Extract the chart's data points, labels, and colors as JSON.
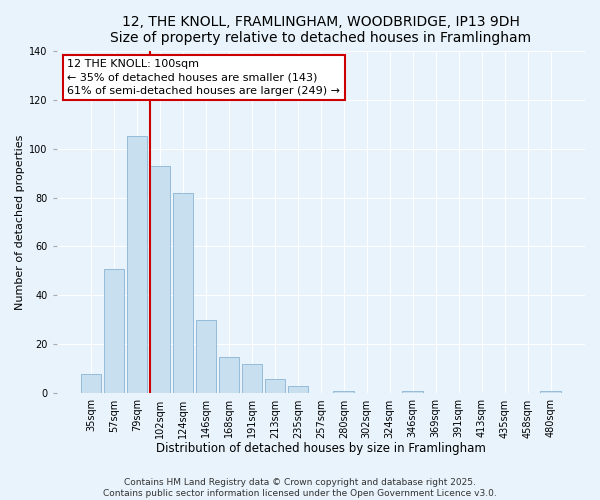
{
  "title": "12, THE KNOLL, FRAMLINGHAM, WOODBRIDGE, IP13 9DH",
  "subtitle": "Size of property relative to detached houses in Framlingham",
  "xlabel": "Distribution of detached houses by size in Framlingham",
  "ylabel": "Number of detached properties",
  "bar_labels": [
    "35sqm",
    "57sqm",
    "79sqm",
    "102sqm",
    "124sqm",
    "146sqm",
    "168sqm",
    "191sqm",
    "213sqm",
    "235sqm",
    "257sqm",
    "280sqm",
    "302sqm",
    "324sqm",
    "346sqm",
    "369sqm",
    "391sqm",
    "413sqm",
    "435sqm",
    "458sqm",
    "480sqm"
  ],
  "bar_values": [
    8,
    51,
    105,
    93,
    82,
    30,
    15,
    12,
    6,
    3,
    0,
    1,
    0,
    0,
    1,
    0,
    0,
    0,
    0,
    0,
    1
  ],
  "bar_color": "#c8dff0",
  "bar_edge_color": "#8ab4d4",
  "vline_index": 3,
  "vline_color": "#cc0000",
  "annotation_title": "12 THE KNOLL: 100sqm",
  "annotation_line1": "← 35% of detached houses are smaller (143)",
  "annotation_line2": "61% of semi-detached houses are larger (249) →",
  "annotation_box_facecolor": "#ffffff",
  "annotation_box_edgecolor": "#cc0000",
  "ylim": [
    0,
    140
  ],
  "yticks": [
    0,
    20,
    40,
    60,
    80,
    100,
    120,
    140
  ],
  "footer1": "Contains HM Land Registry data © Crown copyright and database right 2025.",
  "footer2": "Contains public sector information licensed under the Open Government Licence v3.0.",
  "background_color": "#e8f3fb",
  "plot_background": "#e8f3fb",
  "grid_color": "#ffffff",
  "title_fontsize": 10,
  "subtitle_fontsize": 9,
  "xlabel_fontsize": 8.5,
  "ylabel_fontsize": 8,
  "tick_fontsize": 7,
  "annotation_fontsize": 8,
  "footer_fontsize": 6.5
}
